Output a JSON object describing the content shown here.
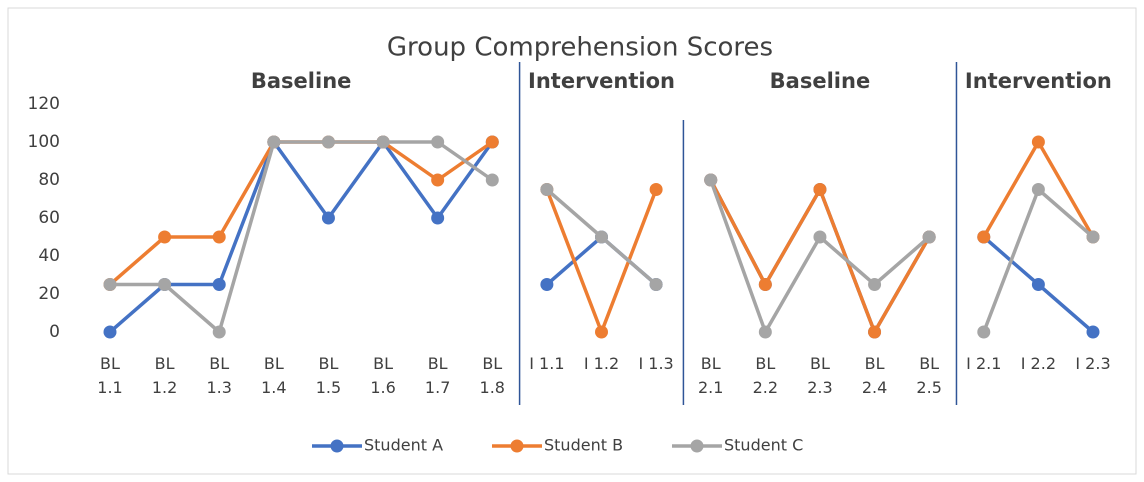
{
  "chart_data": {
    "type": "line",
    "title": "Group Comprehension Scores",
    "categories": [
      "BL 1.1",
      "BL 1.2",
      "BL 1.3",
      "BL 1.4",
      "BL 1.5",
      "BL 1.6",
      "BL 1.7",
      "BL 1.8",
      "I 1.1",
      "I 1.2",
      "I 1.3",
      "BL 2.1",
      "BL 2.2",
      "BL 2.3",
      "BL 2.4",
      "BL 2.5",
      "I 2.1",
      "I 2.2",
      "I 2.3"
    ],
    "phases": [
      {
        "label": "Baseline",
        "start": 0,
        "end": 7
      },
      {
        "label": "Intervention",
        "start": 8,
        "end": 10
      },
      {
        "label": "Baseline",
        "start": 11,
        "end": 15
      },
      {
        "label": "Intervention",
        "start": 16,
        "end": 18
      }
    ],
    "series": [
      {
        "name": "Student A",
        "color": "#4472c4",
        "values": [
          0,
          25,
          25,
          100,
          60,
          100,
          60,
          100,
          25,
          50,
          25,
          80,
          25,
          75,
          0,
          50,
          50,
          25,
          0
        ]
      },
      {
        "name": "Student B",
        "color": "#ed7d31",
        "values": [
          25,
          50,
          50,
          100,
          100,
          100,
          80,
          100,
          75,
          0,
          75,
          80,
          25,
          75,
          0,
          50,
          50,
          100,
          50
        ]
      },
      {
        "name": "Student C",
        "color": "#a5a5a5",
        "values": [
          25,
          25,
          0,
          100,
          100,
          100,
          100,
          80,
          75,
          50,
          25,
          80,
          0,
          50,
          25,
          50,
          0,
          75,
          50
        ]
      }
    ],
    "ylim": [
      0,
      120
    ],
    "yticks": [
      0,
      20,
      40,
      60,
      80,
      100,
      120
    ],
    "grid": false,
    "legend": "bottom"
  }
}
